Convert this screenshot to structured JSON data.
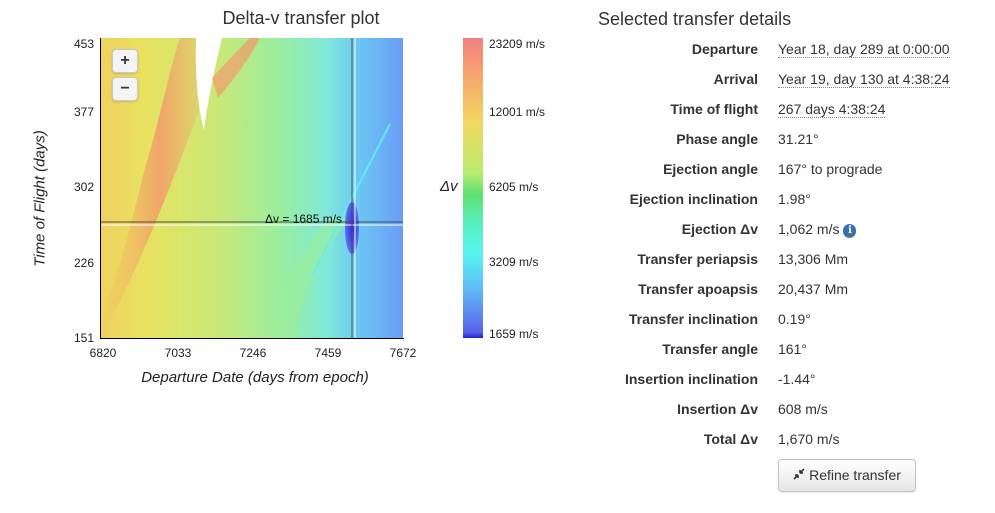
{
  "plot": {
    "title": "Delta-v transfer plot",
    "zoom_in_label": "+",
    "zoom_out_label": "−",
    "crosshair_label": "Δv = 1685 m/s",
    "x_axis": {
      "title": "Departure Date (days from epoch)",
      "ticks": [
        "6820",
        "7033",
        "7246",
        "7459",
        "7672"
      ],
      "range": [
        6820,
        7672
      ]
    },
    "y_axis": {
      "title": "Time of Flight (days)",
      "ticks": [
        "453",
        "377",
        "302",
        "226",
        "151"
      ],
      "range": [
        151,
        453
      ]
    },
    "selected_point": {
      "departure_day": 7528,
      "time_of_flight_days": 267
    }
  },
  "colorbar": {
    "title": "Δv",
    "labels": [
      "23209 m/s",
      "12001 m/s",
      "6205 m/s",
      "3209 m/s",
      "1659 m/s"
    ]
  },
  "details": {
    "title": "Selected transfer details",
    "rows": [
      {
        "label": "Departure",
        "value": "Year 18, day 289 at 0:00:00"
      },
      {
        "label": "Arrival",
        "value": "Year 19, day 130 at 4:38:24"
      },
      {
        "label": "Time of flight",
        "value": "267 days 4:38:24"
      },
      {
        "label": "Phase angle",
        "value": "31.21°"
      },
      {
        "label": "Ejection angle",
        "value": "167° to prograde"
      },
      {
        "label": "Ejection inclination",
        "value": "1.98°"
      },
      {
        "label": "Ejection Δv",
        "value": "1,062 m/s"
      },
      {
        "label": "Transfer periapsis",
        "value": "13,306 Mm"
      },
      {
        "label": "Transfer apoapsis",
        "value": "20,437 Mm"
      },
      {
        "label": "Transfer inclination",
        "value": "0.19°"
      },
      {
        "label": "Transfer angle",
        "value": "161°"
      },
      {
        "label": "Insertion inclination",
        "value": "-1.44°"
      },
      {
        "label": "Insertion Δv",
        "value": "608 m/s"
      },
      {
        "label": "Total Δv",
        "value": "1,670 m/s"
      }
    ],
    "info_icon": "i",
    "refine_button_label": "Refine transfer",
    "refine_icon": "compress-arrows-icon"
  }
}
